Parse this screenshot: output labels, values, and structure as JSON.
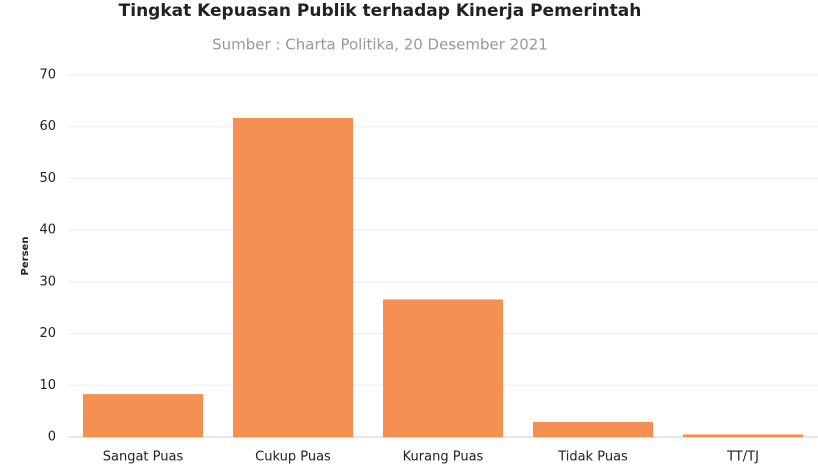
{
  "chart_data": {
    "type": "bar",
    "title": "Tingkat Kepuasan Publik terhadap Kinerja Pemerintah",
    "subtitle": "Sumber : Charta Politika, 20 Desember 2021",
    "y_label": "Persen",
    "categories": [
      "Sangat Puas",
      "Cukup Puas",
      "Kurang Puas",
      "Tidak Puas",
      "TT/TJ"
    ],
    "values": [
      8.3,
      61.7,
      26.6,
      2.9,
      0.5
    ],
    "color": "#f4843f",
    "ylim": [
      0,
      70
    ],
    "yticks": [
      0,
      10,
      20,
      30,
      40,
      50,
      60,
      70
    ],
    "grid": true
  }
}
